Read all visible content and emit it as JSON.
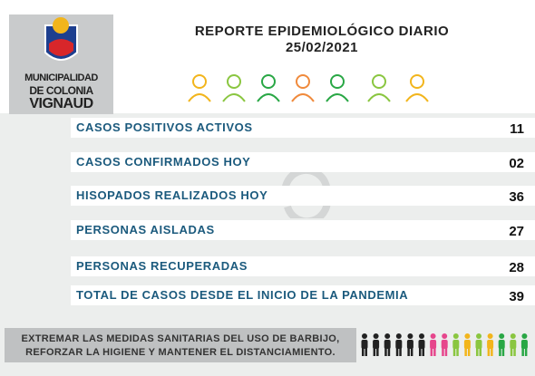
{
  "header": {
    "logo": [
      "MUNICIPALIDAD",
      "DE COLONIA",
      "VIGNAUD"
    ],
    "title": "REPORTE EPIDEMIOLÓGICO DIARIO",
    "date": "25/02/2021"
  },
  "table": {
    "rows": [
      [
        "CASOS POSITIVOS ACTIVOS",
        "11"
      ],
      [
        "CASOS CONFIRMADOS HOY",
        "02"
      ],
      [
        "HISOPADOS REALIZADOS HOY",
        "36"
      ],
      [
        "PERSONAS AISLADAS",
        "27"
      ],
      [
        "PERSONAS RECUPERADAS",
        "28"
      ],
      [
        "TOTAL DE CASOS DESDE EL INICIO DE LA PANDEMIA",
        "39"
      ]
    ]
  },
  "footer": {
    "lines": [
      "EXTREMAR LAS MEDIDAS SANITARIAS DEL USO DE BARBIJO,",
      "REFORZAR LA HIGIENE Y MANTENER EL DISTANCIAMIENTO."
    ]
  }
}
